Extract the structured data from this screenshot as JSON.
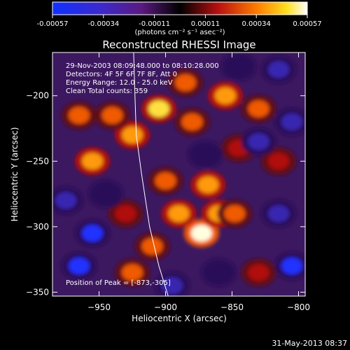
{
  "colorbar": {
    "ticks": [
      "-0.00057",
      "-0.00034",
      "-0.00011",
      "0.00011",
      "0.00034",
      "0.00057"
    ],
    "unit_label": "(photons cm⁻² s⁻¹ asec⁻²)"
  },
  "annotation": {
    "line1": "29-Nov-2003 08:09:48.000 to 08:10:28.000",
    "line2": "Detectors: 4F 5F 6F 7F 8F, Att 0",
    "line3": "Energy Range: 12.0 - 25.0 keV",
    "line4": "Clean    Total counts: 359",
    "peak": "Position of Peak = [-873,-305]"
  },
  "footer": {
    "timestamp": "31-May-2013 08:37"
  },
  "chart_data": {
    "type": "heatmap",
    "title": "Reconstructed RHESSI Image",
    "xlabel": "Heliocentric X (arcsec)",
    "ylabel": "Heliocentric Y (arcsec)",
    "xlim": [
      -985,
      -795
    ],
    "ylim": [
      -353,
      -167
    ],
    "x_ticks": [
      -950,
      -900,
      -850,
      -800
    ],
    "y_ticks": [
      -200,
      -250,
      -300,
      -350
    ],
    "colorbar_range": [
      -0.00057,
      0.00057
    ],
    "peak_position": [
      -873,
      -305
    ],
    "colormap": "blue-purple-black-red-yellow-white",
    "regions": [
      {
        "x": -873,
        "y": -305,
        "intensity": 1.0
      },
      {
        "x": -860,
        "y": -290,
        "intensity": 0.7
      },
      {
        "x": -890,
        "y": -290,
        "intensity": 0.6
      },
      {
        "x": -910,
        "y": -315,
        "intensity": 0.55
      },
      {
        "x": -925,
        "y": -335,
        "intensity": 0.5
      },
      {
        "x": -900,
        "y": -265,
        "intensity": 0.5
      },
      {
        "x": -868,
        "y": -268,
        "intensity": 0.65
      },
      {
        "x": -848,
        "y": -290,
        "intensity": 0.5
      },
      {
        "x": -905,
        "y": -210,
        "intensity": 0.85
      },
      {
        "x": -925,
        "y": -230,
        "intensity": 0.7
      },
      {
        "x": -940,
        "y": -215,
        "intensity": 0.45
      },
      {
        "x": -955,
        "y": -250,
        "intensity": 0.6
      },
      {
        "x": -965,
        "y": -215,
        "intensity": 0.45
      },
      {
        "x": -880,
        "y": -220,
        "intensity": 0.55
      },
      {
        "x": -855,
        "y": -200,
        "intensity": 0.6
      },
      {
        "x": -830,
        "y": -210,
        "intensity": 0.5
      },
      {
        "x": -885,
        "y": -190,
        "intensity": 0.45
      },
      {
        "x": -845,
        "y": -240,
        "intensity": 0.4
      },
      {
        "x": -930,
        "y": -290,
        "intensity": 0.35
      },
      {
        "x": -815,
        "y": -250,
        "intensity": 0.3
      },
      {
        "x": -830,
        "y": -335,
        "intensity": 0.3
      },
      {
        "x": -955,
        "y": -305,
        "intensity": -0.55
      },
      {
        "x": -965,
        "y": -330,
        "intensity": -0.6
      },
      {
        "x": -975,
        "y": -280,
        "intensity": -0.45
      },
      {
        "x": -860,
        "y": -335,
        "intensity": -0.35
      },
      {
        "x": -815,
        "y": -290,
        "intensity": -0.45
      },
      {
        "x": -805,
        "y": -330,
        "intensity": -0.5
      },
      {
        "x": -815,
        "y": -180,
        "intensity": -0.4
      },
      {
        "x": -830,
        "y": -235,
        "intensity": -0.45
      },
      {
        "x": -805,
        "y": -220,
        "intensity": -0.4
      },
      {
        "x": -870,
        "y": -245,
        "intensity": -0.35
      },
      {
        "x": -845,
        "y": -178,
        "intensity": -0.35
      },
      {
        "x": -895,
        "y": -345,
        "intensity": -0.4
      },
      {
        "x": -945,
        "y": -275,
        "intensity": -0.3
      }
    ],
    "limb_curve": [
      [
        -924,
        -167
      ],
      [
        -923,
        -200
      ],
      [
        -922,
        -230
      ],
      [
        -918,
        -260
      ],
      [
        -912,
        -300
      ],
      [
        -905,
        -330
      ],
      [
        -898,
        -353
      ]
    ]
  }
}
